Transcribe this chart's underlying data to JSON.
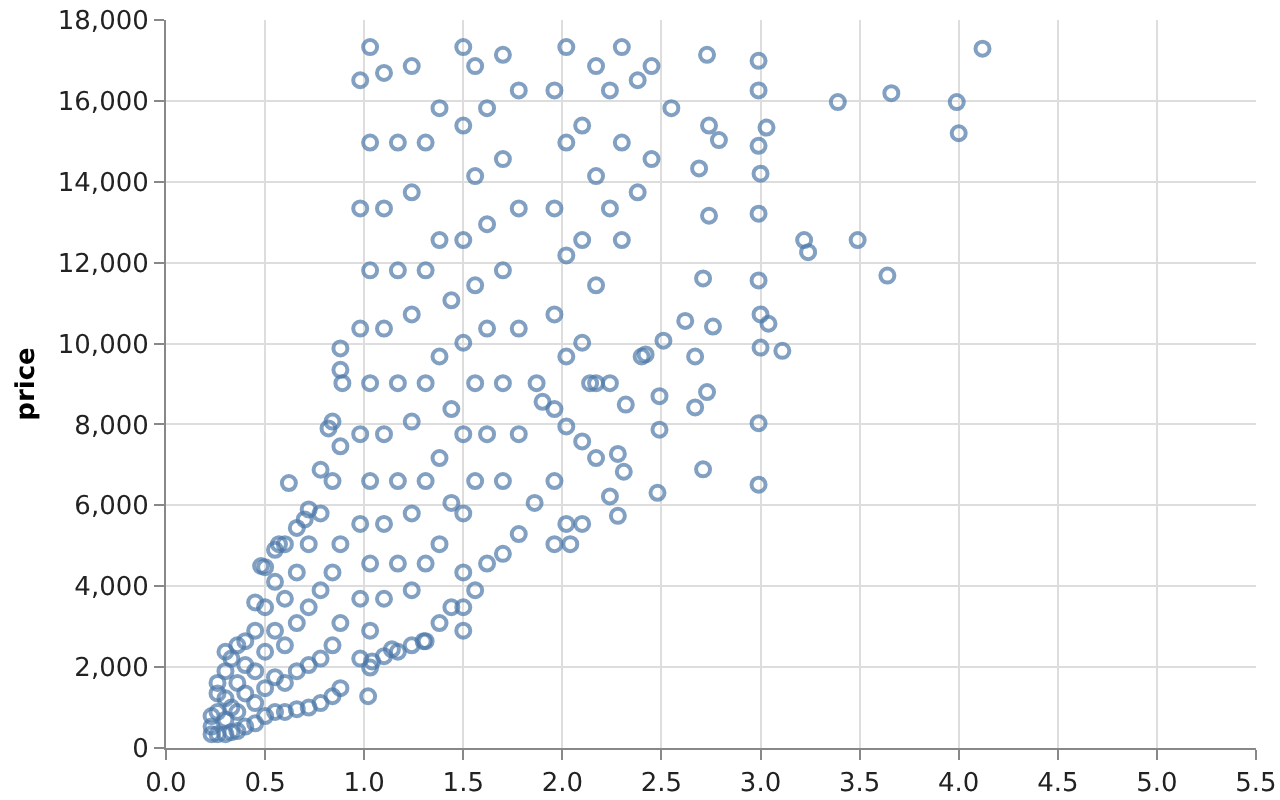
{
  "chart_data": {
    "type": "scatter",
    "ylabel": "price",
    "color": "#4c78a8",
    "marker": "circle",
    "grid": true,
    "xlim": [
      0,
      5.5
    ],
    "ylim": [
      0,
      18000
    ],
    "xticks": [
      {
        "value": 0,
        "label": "0.0"
      },
      0.5,
      {
        "value": 1,
        "label": "1.0"
      },
      1.5,
      {
        "value": 2,
        "label": "2.0"
      },
      2.5,
      {
        "value": 3,
        "label": "3.0"
      },
      3.5,
      {
        "value": 4,
        "label": "4.0"
      },
      4.5,
      {
        "value": 5,
        "label": "5.0"
      },
      5.5
    ],
    "yticks": [
      0,
      {
        "value": 2000,
        "label": "2,000"
      },
      {
        "value": 4000,
        "label": "4,000"
      },
      {
        "value": 6000,
        "label": "6,000"
      },
      {
        "value": 8000,
        "label": "8,000"
      },
      {
        "value": 10000,
        "label": "10,000"
      },
      {
        "value": 12000,
        "label": "12,000"
      },
      {
        "value": 14000,
        "label": "14,000"
      },
      {
        "value": 16000,
        "label": "16,000"
      },
      {
        "value": 18000,
        "label": "18,000"
      }
    ],
    "x": [
      0.23,
      0.23,
      0.23,
      0.26,
      0.26,
      0.26,
      0.26,
      0.3,
      0.3,
      0.3,
      0.3,
      0.3,
      0.33,
      0.33,
      0.33,
      0.36,
      0.36,
      0.36,
      0.36,
      0.4,
      0.4,
      0.4,
      0.4,
      0.45,
      0.45,
      0.45,
      0.45,
      0.45,
      0.48,
      0.5,
      0.5,
      0.5,
      0.5,
      0.5,
      0.55,
      0.55,
      0.55,
      0.55,
      0.55,
      0.57,
      0.6,
      0.6,
      0.6,
      0.6,
      0.6,
      0.62,
      0.66,
      0.66,
      0.66,
      0.66,
      0.66,
      0.7,
      0.72,
      0.72,
      0.72,
      0.72,
      0.72,
      0.78,
      0.78,
      0.78,
      0.78,
      0.78,
      0.82,
      0.84,
      0.84,
      0.84,
      0.84,
      0.84,
      0.88,
      0.88,
      0.88,
      0.88,
      0.88,
      0.88,
      0.89,
      1.02,
      1.04,
      1.14,
      1.3,
      0.98,
      0.98,
      0.98,
      0.98,
      0.98,
      0.98,
      0.98,
      1.03,
      1.03,
      1.03,
      1.03,
      1.03,
      1.03,
      1.03,
      1.03,
      1.1,
      1.1,
      1.1,
      1.1,
      1.1,
      1.1,
      1.1,
      1.17,
      1.17,
      1.17,
      1.17,
      1.17,
      1.17,
      1.24,
      1.24,
      1.24,
      1.24,
      1.24,
      1.24,
      1.24,
      1.31,
      1.31,
      1.31,
      1.31,
      1.31,
      1.31,
      1.38,
      1.38,
      1.38,
      1.38,
      1.38,
      1.38,
      1.44,
      1.44,
      1.44,
      1.44,
      1.5,
      1.5,
      1.5,
      1.5,
      1.5,
      1.5,
      1.5,
      1.5,
      1.5,
      1.56,
      1.56,
      1.56,
      1.56,
      1.56,
      1.56,
      1.62,
      1.62,
      1.62,
      1.62,
      1.62,
      1.7,
      1.7,
      1.7,
      1.7,
      1.7,
      1.7,
      1.78,
      1.78,
      1.78,
      1.78,
      1.78,
      1.86,
      1.87,
      1.9,
      1.96,
      1.96,
      1.96,
      1.96,
      1.96,
      1.96,
      2.02,
      2.02,
      2.02,
      2.02,
      2.02,
      2.02,
      2.1,
      2.1,
      2.1,
      2.1,
      2.17,
      2.17,
      2.17,
      2.17,
      2.17,
      2.24,
      2.24,
      2.24,
      2.24,
      2.3,
      2.3,
      2.3,
      2.38,
      2.38,
      2.45,
      2.45,
      2.55,
      2.14,
      2.1,
      2.04,
      2.4,
      2.73,
      2.99,
      2.99,
      3.03,
      2.99,
      2.79,
      2.74,
      2.69,
      3.0,
      3.39,
      3.66,
      3.99,
      4.0,
      4.12,
      2.99,
      2.74,
      3.22,
      3.24,
      3.49,
      3.64,
      2.71,
      2.99,
      3.0,
      3.04,
      3.11,
      3.0,
      2.76,
      2.62,
      2.51,
      2.42,
      2.67,
      2.73,
      2.67,
      2.49,
      2.49,
      2.32,
      2.99,
      2.71,
      2.99,
      2.48,
      2.31,
      2.28,
      2.28
    ],
    "values": [
      340,
      530,
      790,
      340,
      890,
      1350,
      1610,
      340,
      700,
      1230,
      1900,
      2380,
      390,
      1000,
      2210,
      420,
      890,
      1610,
      2540,
      530,
      1350,
      2050,
      2640,
      610,
      1110,
      1900,
      2900,
      3600,
      4500,
      790,
      1480,
      2380,
      3480,
      4470,
      890,
      1750,
      2900,
      4110,
      4900,
      5040,
      890,
      1610,
      2540,
      3690,
      5040,
      6550,
      960,
      1900,
      3090,
      4340,
      5440,
      5650,
      1000,
      2050,
      3480,
      5040,
      5900,
      1110,
      2210,
      3900,
      5800,
      6880,
      7900,
      1280,
      2540,
      4340,
      6600,
      8070,
      1480,
      3090,
      5040,
      7460,
      9350,
      9880,
      9020,
      1280,
      2140,
      2440,
      2640,
      2210,
      3690,
      5540,
      7760,
      10370,
      13340,
      16510,
      1990,
      2900,
      4560,
      6600,
      9020,
      11810,
      14970,
      17330,
      2270,
      3690,
      5540,
      7760,
      10370,
      13340,
      16690,
      2380,
      4560,
      6600,
      9020,
      11810,
      14970,
      2540,
      3900,
      5800,
      8070,
      10720,
      13740,
      16860,
      2640,
      4560,
      6600,
      9020,
      11810,
      14970,
      3090,
      5040,
      7170,
      9680,
      12560,
      15820,
      3480,
      6060,
      8380,
      11070,
      2900,
      3480,
      4340,
      5800,
      7760,
      10020,
      12560,
      15390,
      17330,
      3900,
      6600,
      9020,
      11440,
      14140,
      16860,
      4560,
      7760,
      10370,
      12950,
      15820,
      4800,
      6600,
      9020,
      11810,
      14560,
      17140,
      5290,
      7760,
      10370,
      13340,
      16260,
      6060,
      9020,
      8560,
      5040,
      6600,
      8380,
      10720,
      13340,
      16260,
      5540,
      7950,
      9680,
      12180,
      14970,
      17330,
      7580,
      10020,
      12560,
      15390,
      7170,
      9020,
      11440,
      14140,
      16860,
      6220,
      9020,
      13340,
      16260,
      12560,
      14970,
      17330,
      13740,
      16510,
      14560,
      16860,
      15820,
      9020,
      5540,
      5040,
      9680,
      17140,
      16990,
      16260,
      15340,
      14890,
      15030,
      15390,
      14330,
      14200,
      15970,
      16190,
      15970,
      15200,
      17290,
      13210,
      13160,
      12560,
      12260,
      12560,
      11680,
      11610,
      11560,
      10720,
      10490,
      9820,
      9900,
      10420,
      10560,
      10070,
      9730,
      9680,
      8800,
      8420,
      8700,
      7870,
      8490,
      8030,
      6890,
      6510,
      6310,
      6830,
      5740,
      7270
    ]
  }
}
